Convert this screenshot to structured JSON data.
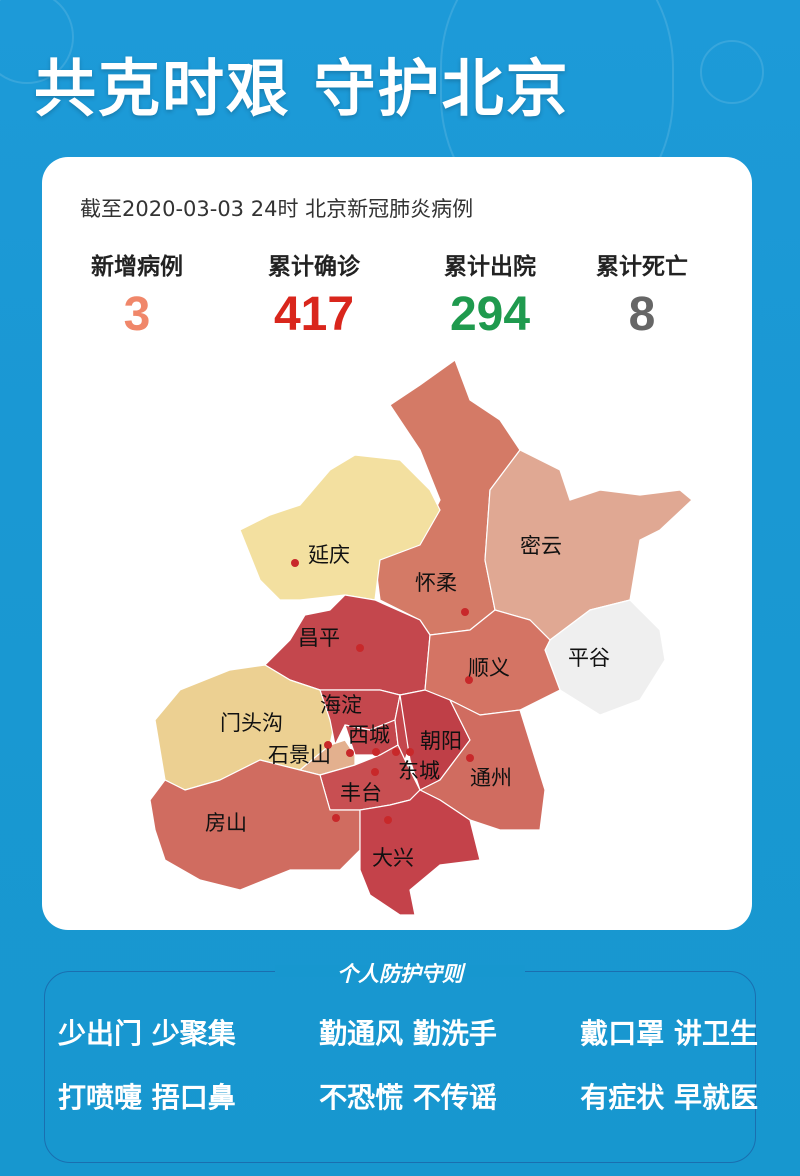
{
  "header": {
    "title": "共克时艰 守护北京"
  },
  "card": {
    "subtitle": "截至2020-03-03 24时  北京新冠肺炎病例",
    "stats": [
      {
        "label": "新增病例",
        "value": "3",
        "color": "#f0876a"
      },
      {
        "label": "累计确诊",
        "value": "417",
        "color": "#d9261c"
      },
      {
        "label": "累计出院",
        "value": "294",
        "color": "#1f9a4e"
      },
      {
        "label": "累计死亡",
        "value": "8",
        "color": "#666666"
      }
    ],
    "map": {
      "districts": [
        {
          "name": "怀柔",
          "color": "#d47a66"
        },
        {
          "name": "延庆",
          "color": "#f3e0a0"
        },
        {
          "name": "密云",
          "color": "#e0a893"
        },
        {
          "name": "平谷",
          "color": "#efefef"
        },
        {
          "name": "昌平",
          "color": "#c4474d"
        },
        {
          "name": "顺义",
          "color": "#d47464"
        },
        {
          "name": "门头沟",
          "color": "#ecd092"
        },
        {
          "name": "海淀",
          "color": "#c4474d"
        },
        {
          "name": "西城",
          "color": "#c4474d"
        },
        {
          "name": "东城",
          "color": "#c4474d"
        },
        {
          "name": "朝阳",
          "color": "#bf3f47"
        },
        {
          "name": "通州",
          "color": "#d06c60"
        },
        {
          "name": "石景山",
          "color": "#e3b08e"
        },
        {
          "name": "丰台",
          "color": "#c84f52"
        },
        {
          "name": "房山",
          "color": "#d06c60"
        },
        {
          "name": "大兴",
          "color": "#c4424a"
        }
      ]
    }
  },
  "guide": {
    "title": "个人防护守则",
    "rows": [
      [
        "少出门 少聚集",
        "勤通风 勤洗手",
        "戴口罩 讲卫生"
      ],
      [
        "打喷嚏 捂口鼻",
        "不恐慌 不传谣",
        "有症状 早就医"
      ]
    ]
  }
}
